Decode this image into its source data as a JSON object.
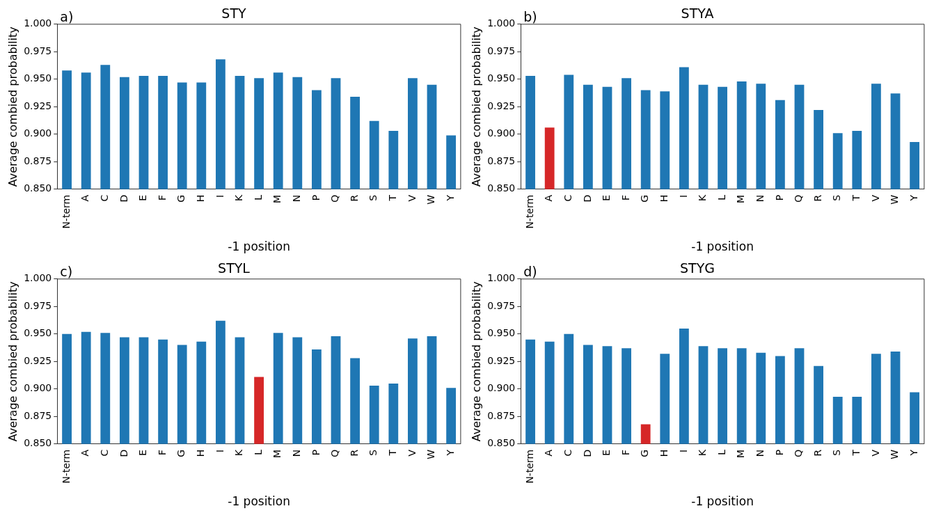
{
  "chart_data": [
    {
      "type": "bar",
      "title": "STY",
      "annotations": [
        "a)"
      ],
      "xlabel": "-1 position",
      "ylabel": "Average combied probability",
      "categories": [
        "N-term",
        "A",
        "C",
        "D",
        "E",
        "F",
        "G",
        "H",
        "I",
        "K",
        "L",
        "M",
        "N",
        "P",
        "Q",
        "R",
        "S",
        "T",
        "V",
        "W",
        "Y"
      ],
      "values": [
        0.958,
        0.956,
        0.963,
        0.952,
        0.953,
        0.953,
        0.947,
        0.947,
        0.968,
        0.953,
        0.951,
        0.956,
        0.952,
        0.94,
        0.951,
        0.934,
        0.912,
        0.903,
        0.951,
        0.945,
        0.899
      ],
      "colors": [
        "#1f77b4",
        "#1f77b4",
        "#1f77b4",
        "#1f77b4",
        "#1f77b4",
        "#1f77b4",
        "#1f77b4",
        "#1f77b4",
        "#1f77b4",
        "#1f77b4",
        "#1f77b4",
        "#1f77b4",
        "#1f77b4",
        "#1f77b4",
        "#1f77b4",
        "#1f77b4",
        "#1f77b4",
        "#1f77b4",
        "#1f77b4",
        "#1f77b4",
        "#1f77b4"
      ],
      "ylim": [
        0.85,
        1.0
      ],
      "yticks": [
        {
          "value": 0.85,
          "label": "0.850"
        },
        {
          "value": 0.875,
          "label": "0.875"
        },
        {
          "value": 0.9,
          "label": "0.900"
        },
        {
          "value": 0.925,
          "label": "0.925"
        },
        {
          "value": 0.95,
          "label": "0.950"
        },
        {
          "value": 0.975,
          "label": "0.975"
        },
        {
          "value": 1.0,
          "label": "1.000"
        }
      ],
      "grid": false,
      "legend": false
    },
    {
      "type": "bar",
      "title": "STYA",
      "annotations": [
        "b)"
      ],
      "xlabel": "-1 position",
      "ylabel": "Average combied probability",
      "categories": [
        "N-term",
        "A",
        "C",
        "D",
        "E",
        "F",
        "G",
        "H",
        "I",
        "K",
        "L",
        "M",
        "N",
        "P",
        "Q",
        "R",
        "S",
        "T",
        "V",
        "W",
        "Y"
      ],
      "values": [
        0.953,
        0.906,
        0.954,
        0.945,
        0.943,
        0.951,
        0.94,
        0.939,
        0.961,
        0.945,
        0.943,
        0.948,
        0.946,
        0.931,
        0.945,
        0.922,
        0.901,
        0.903,
        0.946,
        0.937,
        0.893
      ],
      "colors": [
        "#1f77b4",
        "#d62728",
        "#1f77b4",
        "#1f77b4",
        "#1f77b4",
        "#1f77b4",
        "#1f77b4",
        "#1f77b4",
        "#1f77b4",
        "#1f77b4",
        "#1f77b4",
        "#1f77b4",
        "#1f77b4",
        "#1f77b4",
        "#1f77b4",
        "#1f77b4",
        "#1f77b4",
        "#1f77b4",
        "#1f77b4",
        "#1f77b4",
        "#1f77b4"
      ],
      "ylim": [
        0.85,
        1.0
      ],
      "yticks": [
        {
          "value": 0.85,
          "label": "0.850"
        },
        {
          "value": 0.875,
          "label": "0.875"
        },
        {
          "value": 0.9,
          "label": "0.900"
        },
        {
          "value": 0.925,
          "label": "0.925"
        },
        {
          "value": 0.95,
          "label": "0.950"
        },
        {
          "value": 0.975,
          "label": "0.975"
        },
        {
          "value": 1.0,
          "label": "1.000"
        }
      ],
      "grid": false,
      "legend": false
    },
    {
      "type": "bar",
      "title": "STYL",
      "annotations": [
        "c)"
      ],
      "xlabel": "-1 position",
      "ylabel": "Average combied probability",
      "categories": [
        "N-term",
        "A",
        "C",
        "D",
        "E",
        "F",
        "G",
        "H",
        "I",
        "K",
        "L",
        "M",
        "N",
        "P",
        "Q",
        "R",
        "S",
        "T",
        "V",
        "W",
        "Y"
      ],
      "values": [
        0.95,
        0.952,
        0.951,
        0.947,
        0.947,
        0.945,
        0.94,
        0.943,
        0.962,
        0.947,
        0.911,
        0.951,
        0.947,
        0.936,
        0.948,
        0.928,
        0.903,
        0.905,
        0.946,
        0.948,
        0.901
      ],
      "colors": [
        "#1f77b4",
        "#1f77b4",
        "#1f77b4",
        "#1f77b4",
        "#1f77b4",
        "#1f77b4",
        "#1f77b4",
        "#1f77b4",
        "#1f77b4",
        "#1f77b4",
        "#d62728",
        "#1f77b4",
        "#1f77b4",
        "#1f77b4",
        "#1f77b4",
        "#1f77b4",
        "#1f77b4",
        "#1f77b4",
        "#1f77b4",
        "#1f77b4",
        "#1f77b4"
      ],
      "ylim": [
        0.85,
        1.0
      ],
      "yticks": [
        {
          "value": 0.85,
          "label": "0.850"
        },
        {
          "value": 0.875,
          "label": "0.875"
        },
        {
          "value": 0.9,
          "label": "0.900"
        },
        {
          "value": 0.925,
          "label": "0.925"
        },
        {
          "value": 0.95,
          "label": "0.950"
        },
        {
          "value": 0.975,
          "label": "0.975"
        },
        {
          "value": 1.0,
          "label": "1.000"
        }
      ],
      "grid": false,
      "legend": false
    },
    {
      "type": "bar",
      "title": "STYG",
      "annotations": [
        "d)"
      ],
      "xlabel": "-1 position",
      "ylabel": "Average combied probability",
      "categories": [
        "N-term",
        "A",
        "C",
        "D",
        "E",
        "F",
        "G",
        "H",
        "I",
        "K",
        "L",
        "M",
        "N",
        "P",
        "Q",
        "R",
        "S",
        "T",
        "V",
        "W",
        "Y"
      ],
      "values": [
        0.945,
        0.943,
        0.95,
        0.94,
        0.939,
        0.937,
        0.868,
        0.932,
        0.955,
        0.939,
        0.937,
        0.937,
        0.933,
        0.93,
        0.937,
        0.921,
        0.893,
        0.893,
        0.932,
        0.934,
        0.897
      ],
      "colors": [
        "#1f77b4",
        "#1f77b4",
        "#1f77b4",
        "#1f77b4",
        "#1f77b4",
        "#1f77b4",
        "#d62728",
        "#1f77b4",
        "#1f77b4",
        "#1f77b4",
        "#1f77b4",
        "#1f77b4",
        "#1f77b4",
        "#1f77b4",
        "#1f77b4",
        "#1f77b4",
        "#1f77b4",
        "#1f77b4",
        "#1f77b4",
        "#1f77b4",
        "#1f77b4"
      ],
      "ylim": [
        0.85,
        1.0
      ],
      "yticks": [
        {
          "value": 0.85,
          "label": "0.850"
        },
        {
          "value": 0.875,
          "label": "0.875"
        },
        {
          "value": 0.9,
          "label": "0.900"
        },
        {
          "value": 0.925,
          "label": "0.925"
        },
        {
          "value": 0.95,
          "label": "0.950"
        },
        {
          "value": 0.975,
          "label": "0.975"
        },
        {
          "value": 1.0,
          "label": "1.000"
        }
      ],
      "grid": false,
      "legend": false
    }
  ]
}
